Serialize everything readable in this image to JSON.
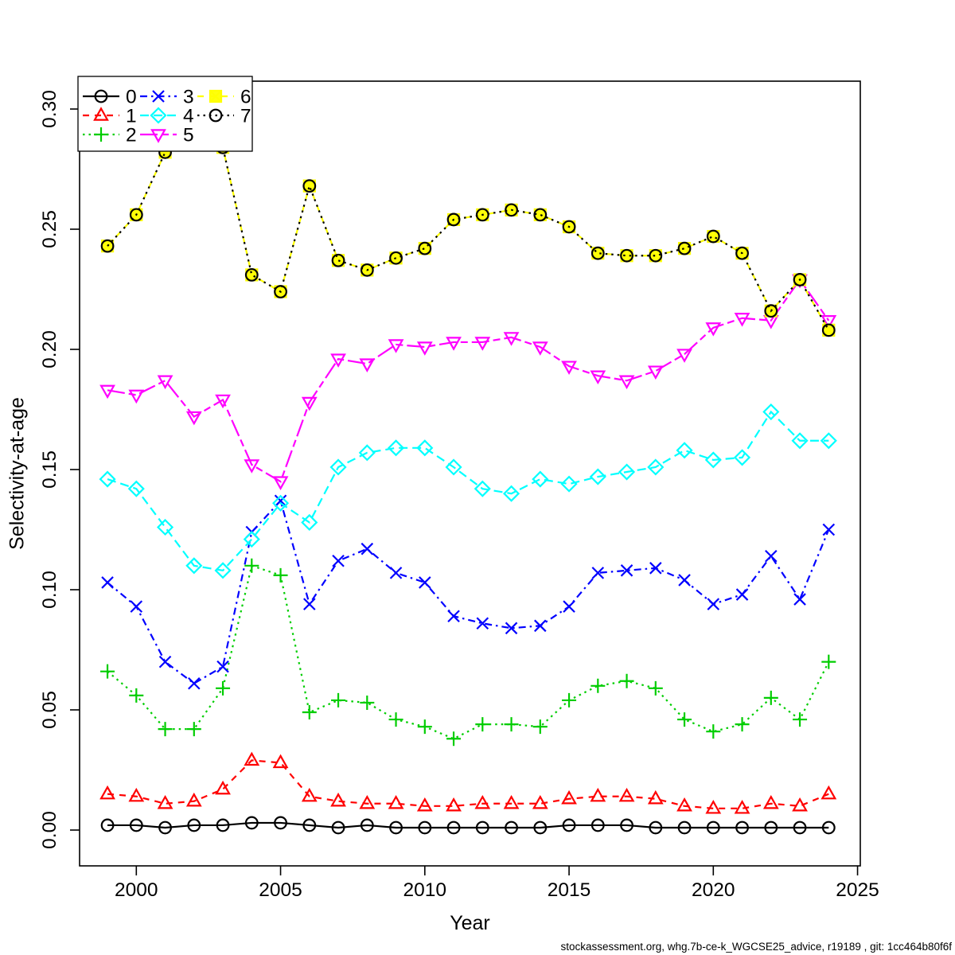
{
  "figure": {
    "footer": "stockassessment.org, whg.7b-ce-k_WGCSE25_advice, r19189 , git: 1cc464b80f6f"
  },
  "chart_data": {
    "type": "line",
    "title": "",
    "xlabel": "Year",
    "ylabel": "Selectivity-at-age",
    "grid": false,
    "legend_position": "top-left",
    "legend_labels": [
      "0",
      "1",
      "2",
      "3",
      "4",
      "5",
      "6",
      "7"
    ],
    "x": [
      1999,
      2000,
      2001,
      2002,
      2003,
      2004,
      2005,
      2006,
      2007,
      2008,
      2009,
      2010,
      2011,
      2012,
      2013,
      2014,
      2015,
      2016,
      2017,
      2018,
      2019,
      2020,
      2021,
      2022,
      2023,
      2024
    ],
    "xticks": [
      2000,
      2005,
      2010,
      2015,
      2020,
      2025
    ],
    "yticks": [
      "0.00",
      "0.05",
      "0.10",
      "0.15",
      "0.20",
      "0.25",
      "0.30"
    ],
    "xlim": [
      1998.05,
      2025.1
    ],
    "ylim": [
      -0.0149,
      0.3116
    ],
    "series": [
      {
        "name": "0",
        "color": "#000000",
        "linestyle": "solid",
        "marker": "circle",
        "values": [
          0.002,
          0.002,
          0.001,
          0.002,
          0.002,
          0.003,
          0.003,
          0.002,
          0.001,
          0.002,
          0.001,
          0.001,
          0.001,
          0.001,
          0.001,
          0.001,
          0.002,
          0.002,
          0.002,
          0.001,
          0.001,
          0.001,
          0.001,
          0.001,
          0.001,
          0.001
        ]
      },
      {
        "name": "1",
        "color": "#FF0000",
        "linestyle": "dashed",
        "marker": "triangle-up",
        "values": [
          0.015,
          0.014,
          0.011,
          0.012,
          0.017,
          0.029,
          0.028,
          0.014,
          0.012,
          0.011,
          0.011,
          0.01,
          0.01,
          0.011,
          0.011,
          0.011,
          0.013,
          0.014,
          0.014,
          0.013,
          0.01,
          0.009,
          0.009,
          0.011,
          0.01,
          0.015
        ]
      },
      {
        "name": "2",
        "color": "#00CD00",
        "linestyle": "dotted",
        "marker": "plus",
        "values": [
          0.066,
          0.056,
          0.042,
          0.042,
          0.059,
          0.11,
          0.106,
          0.049,
          0.054,
          0.053,
          0.046,
          0.043,
          0.038,
          0.044,
          0.044,
          0.043,
          0.054,
          0.06,
          0.062,
          0.059,
          0.046,
          0.041,
          0.044,
          0.055,
          0.046,
          0.07
        ]
      },
      {
        "name": "3",
        "color": "#0000FF",
        "linestyle": "dashdot",
        "marker": "x",
        "values": [
          0.103,
          0.093,
          0.07,
          0.061,
          0.068,
          0.124,
          0.137,
          0.094,
          0.112,
          0.117,
          0.107,
          0.103,
          0.089,
          0.086,
          0.084,
          0.085,
          0.093,
          0.107,
          0.108,
          0.109,
          0.104,
          0.094,
          0.098,
          0.114,
          0.096,
          0.125
        ]
      },
      {
        "name": "4",
        "color": "#00FFFF",
        "linestyle": "longdash",
        "marker": "diamond",
        "values": [
          0.146,
          0.142,
          0.126,
          0.11,
          0.108,
          0.121,
          0.136,
          0.128,
          0.151,
          0.157,
          0.159,
          0.159,
          0.151,
          0.142,
          0.14,
          0.146,
          0.144,
          0.147,
          0.149,
          0.151,
          0.158,
          0.154,
          0.155,
          0.174,
          0.162,
          0.162
        ]
      },
      {
        "name": "5",
        "color": "#FF00FF",
        "linestyle": "twodash",
        "marker": "triangle-down",
        "values": [
          0.183,
          0.181,
          0.187,
          0.172,
          0.179,
          0.152,
          0.145,
          0.178,
          0.196,
          0.194,
          0.202,
          0.201,
          0.203,
          0.203,
          0.205,
          0.201,
          0.193,
          0.189,
          0.187,
          0.191,
          0.198,
          0.209,
          0.213,
          0.212,
          0.229,
          0.212
        ]
      },
      {
        "name": "6",
        "color": "#FFFF00",
        "linestyle": "dashed",
        "marker": "square-x",
        "values": [
          0.243,
          0.256,
          0.282,
          0.292,
          0.284,
          0.231,
          0.224,
          0.268,
          0.237,
          0.233,
          0.238,
          0.242,
          0.254,
          0.256,
          0.258,
          0.256,
          0.251,
          0.24,
          0.239,
          0.239,
          0.242,
          0.247,
          0.24,
          0.216,
          0.229,
          0.208
        ]
      },
      {
        "name": "7",
        "color": "#000000",
        "linestyle": "dotted",
        "marker": "circle",
        "values": [
          0.243,
          0.256,
          0.282,
          0.292,
          0.284,
          0.231,
          0.224,
          0.268,
          0.237,
          0.233,
          0.238,
          0.242,
          0.254,
          0.256,
          0.258,
          0.256,
          0.251,
          0.24,
          0.239,
          0.239,
          0.242,
          0.247,
          0.24,
          0.216,
          0.229,
          0.208
        ]
      }
    ]
  }
}
